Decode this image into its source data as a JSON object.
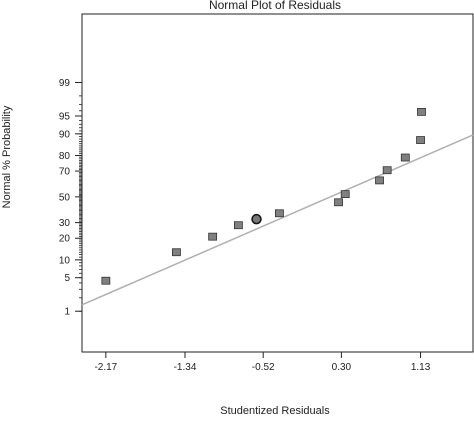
{
  "chart_data": {
    "type": "scatter",
    "title": "Normal Plot of Residuals",
    "xlabel": "Studentized Residuals",
    "ylabel": "Normal % Probability",
    "x_ticks": [
      "-2.17",
      "-1.34",
      "-0.52",
      "0.30",
      "1.13"
    ],
    "y_ticks": [
      "1",
      "5",
      "10",
      "20",
      "30",
      "50",
      "70",
      "80",
      "90",
      "95",
      "99"
    ],
    "xlim": [
      -2.42,
      1.68
    ],
    "ylim_percent": [
      0.08,
      99.99
    ],
    "y_scale": "normal-probability",
    "grid": false,
    "points": [
      {
        "x": -2.17,
        "y": 4.4
      },
      {
        "x": -1.43,
        "y": 13.0
      },
      {
        "x": -1.05,
        "y": 20.9
      },
      {
        "x": -0.78,
        "y": 28.2
      },
      {
        "x": -0.59,
        "y": 32.5,
        "highlighted": true
      },
      {
        "x": -0.35,
        "y": 36.9
      },
      {
        "x": 0.27,
        "y": 45.6
      },
      {
        "x": 0.34,
        "y": 52.2
      },
      {
        "x": 0.7,
        "y": 63.1
      },
      {
        "x": 0.78,
        "y": 70.6
      },
      {
        "x": 0.97,
        "y": 78.8
      },
      {
        "x": 1.13,
        "y": 87.6
      },
      {
        "x": 1.14,
        "y": 95.8
      }
    ],
    "fit_line": {
      "x": [
        -2.42,
        1.68
      ],
      "y": [
        1.4,
        89.6
      ]
    },
    "colors": {
      "points": "#808080",
      "line": "#b0b0b0",
      "frame": "#222222"
    }
  }
}
